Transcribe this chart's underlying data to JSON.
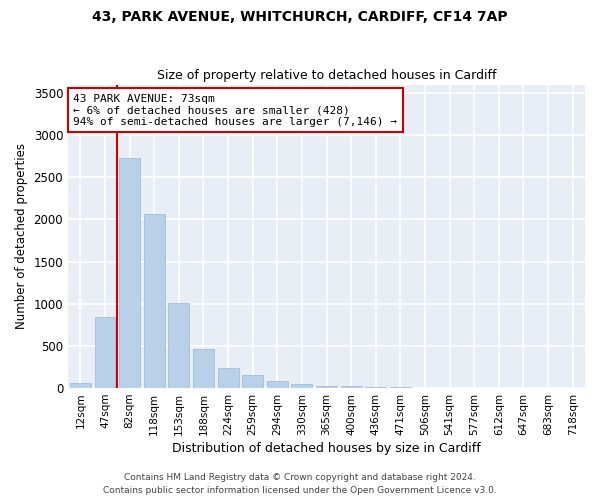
{
  "title_line1": "43, PARK AVENUE, WHITCHURCH, CARDIFF, CF14 7AP",
  "title_line2": "Size of property relative to detached houses in Cardiff",
  "xlabel": "Distribution of detached houses by size in Cardiff",
  "ylabel": "Number of detached properties",
  "categories": [
    "12sqm",
    "47sqm",
    "82sqm",
    "118sqm",
    "153sqm",
    "188sqm",
    "224sqm",
    "259sqm",
    "294sqm",
    "330sqm",
    "365sqm",
    "400sqm",
    "436sqm",
    "471sqm",
    "506sqm",
    "541sqm",
    "577sqm",
    "612sqm",
    "647sqm",
    "683sqm",
    "718sqm"
  ],
  "values": [
    55,
    840,
    2730,
    2060,
    1010,
    460,
    240,
    155,
    85,
    50,
    30,
    20,
    15,
    10,
    5,
    5,
    3,
    2,
    1,
    1,
    1
  ],
  "bar_color": "#b8d0e8",
  "bar_edge_color": "#9ab8d4",
  "annotation_text": "43 PARK AVENUE: 73sqm\n← 6% of detached houses are smaller (428)\n94% of semi-detached houses are larger (7,146) →",
  "annotation_box_color": "white",
  "annotation_box_edge_color": "#cc0000",
  "vline_color": "#cc0000",
  "vline_x": 1.5,
  "ylim": [
    0,
    3600
  ],
  "yticks": [
    0,
    500,
    1000,
    1500,
    2000,
    2500,
    3000,
    3500
  ],
  "bg_color": "#e8eef5",
  "grid_color": "white",
  "footer_line1": "Contains HM Land Registry data © Crown copyright and database right 2024.",
  "footer_line2": "Contains public sector information licensed under the Open Government Licence v3.0."
}
